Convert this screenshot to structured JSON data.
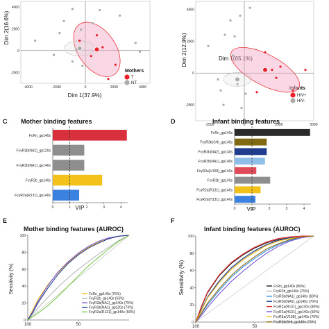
{
  "chart_data": [
    {
      "type": "scatter",
      "panel": "",
      "xlabel": "Dim 1(37.9%)",
      "ylabel": "Dim 2(16.6%)",
      "xticks": [
        "-4000",
        "-2000",
        "0",
        "2000",
        "4000"
      ],
      "yticks": [
        "4000",
        "2000",
        "0",
        "-2000",
        "-4000"
      ],
      "legend_title": "Mothers",
      "legend_position": "bottom-right",
      "series": [
        {
          "name": "T",
          "color": "#e8202a",
          "points": [
            [
              1200,
              300
            ],
            [
              400,
              -500
            ],
            [
              800,
              1400
            ],
            [
              -400,
              900
            ],
            [
              2100,
              -1300
            ],
            [
              1600,
              -2600
            ]
          ],
          "centroid": [
            800,
            100
          ]
        },
        {
          "name": "NT",
          "color": "#aaaaaa",
          "points": [
            [
              -3500,
              900
            ],
            [
              -1500,
              2700
            ],
            [
              -1800,
              1600
            ],
            [
              -900,
              3800
            ],
            [
              -600,
              100
            ],
            [
              -300,
              1900
            ],
            [
              500,
              2500
            ],
            [
              1000,
              3700
            ],
            [
              2400,
              3200
            ],
            [
              -2200,
              -400
            ],
            [
              -900,
              -1000
            ],
            [
              -200,
              -1400
            ],
            [
              3500,
              700
            ],
            [
              3800,
              -100
            ]
          ],
          "centroid": [
            -400,
            200
          ]
        }
      ]
    },
    {
      "type": "scatter",
      "panel": "",
      "xlabel": "Dim 1(65.1%)",
      "ylabel": "Dim 2(12.9%)",
      "xticks": [
        "-2500",
        "0",
        "2500",
        "5000"
      ],
      "yticks": [
        "4000",
        "2000",
        "0",
        "-2000"
      ],
      "legend_title": "Infants",
      "legend_position": "bottom-right",
      "series": [
        {
          "name": "HIV+",
          "color": "#e8202a",
          "points": [
            [
              1500,
              1300
            ],
            [
              2000,
              200
            ],
            [
              2600,
              400
            ],
            [
              3500,
              -1100
            ],
            [
              900,
              -1200
            ],
            [
              2300,
              -300
            ],
            [
              4400,
              200
            ]
          ],
          "centroid": [
            1500,
            200
          ]
        },
        {
          "name": "HIV-",
          "color": "#aaaaaa",
          "points": [
            [
              -2600,
              1700
            ],
            [
              -1700,
              -1100
            ],
            [
              -1400,
              2400
            ],
            [
              -1000,
              3300
            ],
            [
              -800,
              1100
            ],
            [
              -300,
              3600
            ],
            [
              400,
              4100
            ],
            [
              -500,
              -700
            ],
            [
              -1500,
              -2000
            ],
            [
              -200,
              -2200
            ],
            [
              -1900,
              -400
            ],
            [
              100,
              -1300
            ],
            [
              -700,
              2300
            ]
          ],
          "centroid": [
            -500,
            -400
          ]
        }
      ]
    },
    {
      "type": "bar",
      "panel": "C",
      "title": "Mother binding features",
      "xlabel": "VIP",
      "xticks": [
        "0",
        "1",
        "2",
        "3",
        "4"
      ],
      "xlim": [
        0,
        4.4
      ],
      "threshold": 1,
      "categories": [
        "FcRn_gp140s",
        "FcγR3b(NA1)_gp120s",
        "FcγR3b(NA1)_gp140s",
        "FcγR2b_gp140s",
        "FcγR2a(R131)_gp140s"
      ],
      "values": [
        4.35,
        1.85,
        1.85,
        2.9,
        1.55
      ],
      "colors": [
        "#d9303e",
        "#8e8e8e",
        "#8e8e8e",
        "#f2c21b",
        "#3b82e0"
      ]
    },
    {
      "type": "bar",
      "panel": "D",
      "title": "Infant binding features",
      "xlabel": "VIP",
      "xticks": [
        "0",
        "1",
        "2",
        "3",
        "4"
      ],
      "xlim": [
        0,
        4.4
      ],
      "threshold": 1,
      "categories": [
        "FcRn_gp140s",
        "FcγR3b(SH)_gp140s",
        "FcγR3b(NA2)_gp140s",
        "FcγR3b(NA1)_gp140s",
        "FcγR3a(V158)_gp140s",
        "FcγR2b_gp140s",
        "FcγR2a(R131)_gp140s",
        "FcγR2a(H131)_gp140s"
      ],
      "values": [
        4.35,
        1.85,
        1.85,
        1.75,
        1.25,
        2.05,
        1.5,
        1.2
      ],
      "colors": [
        "#2b2b2b",
        "#7f6a13",
        "#1f3c8f",
        "#8fbfe8",
        "#e04b5a",
        "#8e8e8e",
        "#f2c21b",
        "#3b82e0"
      ]
    },
    {
      "type": "line",
      "panel": "E",
      "title": "Mother binding features (AUROC)",
      "ylabel": "Sensitivity (%)",
      "yticks": [
        "100",
        "80",
        "60",
        "40",
        "20",
        "0"
      ],
      "xticks": [
        "100",
        "50"
      ],
      "series": [
        {
          "name": "FcRn_gp140s (75%)",
          "color": "#f2c21b",
          "x": [
            0,
            5,
            10,
            20,
            30,
            40,
            50,
            60,
            70,
            80,
            90,
            100
          ],
          "y": [
            0,
            12,
            24,
            42,
            56,
            68,
            78,
            86,
            92,
            96,
            99,
            100
          ]
        },
        {
          "name": "FcγR2b_gp140s (63%)",
          "color": "#b8b8b8",
          "x": [
            0,
            10,
            20,
            30,
            40,
            50,
            60,
            70,
            80,
            90,
            100
          ],
          "y": [
            0,
            14,
            27,
            39,
            50,
            60,
            69,
            78,
            86,
            94,
            100
          ]
        },
        {
          "name": "FcγR3b(NA1)_gp140s (75%)",
          "color": "#7a55d6",
          "x": [
            0,
            5,
            10,
            20,
            30,
            40,
            50,
            60,
            70,
            80,
            90,
            100
          ],
          "y": [
            0,
            10,
            22,
            41,
            57,
            69,
            79,
            87,
            93,
            97,
            99,
            100
          ]
        },
        {
          "name": "FcγR3b(NA1)_gp120s (73%)",
          "color": "#1f3c8f",
          "x": [
            0,
            5,
            10,
            20,
            30,
            40,
            50,
            60,
            70,
            80,
            90,
            100
          ],
          "y": [
            0,
            9,
            20,
            38,
            54,
            67,
            77,
            85,
            91,
            96,
            99,
            100
          ]
        },
        {
          "name": "FcγR2a(R131)_gp140s (60%)",
          "color": "#7ec850",
          "x": [
            0,
            10,
            20,
            30,
            40,
            50,
            60,
            70,
            80,
            90,
            100
          ],
          "y": [
            0,
            8,
            17,
            28,
            40,
            52,
            64,
            74,
            84,
            93,
            100
          ]
        }
      ]
    },
    {
      "type": "line",
      "panel": "F",
      "title": "Infant binding features (AUROC)",
      "ylabel": "Sensitivity (%)",
      "yticks": [
        "100",
        "80",
        "60",
        "40",
        "20",
        "0"
      ],
      "xticks": [
        "100",
        "50"
      ],
      "series": [
        {
          "name": "FcRn_gp140s (80%)",
          "color": "#222222",
          "x": [
            0,
            5,
            10,
            20,
            30,
            40,
            50,
            60,
            70,
            80,
            90,
            100
          ],
          "y": [
            0,
            18,
            34,
            54,
            68,
            78,
            86,
            92,
            96,
            98,
            99,
            100
          ]
        },
        {
          "name": "FcγR2b_gp140s (76%)",
          "color": "#b8b8b8",
          "x": [
            0,
            5,
            10,
            20,
            30,
            40,
            50,
            60,
            70,
            80,
            90,
            100
          ],
          "y": [
            0,
            14,
            28,
            47,
            62,
            73,
            82,
            89,
            94,
            97,
            99,
            100
          ]
        },
        {
          "name": "FcγR3b(NA1)_gp140s (69%)",
          "color": "#2e8de0",
          "x": [
            0,
            5,
            10,
            20,
            30,
            40,
            50,
            60,
            70,
            80,
            90,
            100
          ],
          "y": [
            0,
            10,
            20,
            37,
            52,
            64,
            74,
            83,
            90,
            95,
            99,
            100
          ]
        },
        {
          "name": "FcγR3b(NA2)_gp140s (76%)",
          "color": "#1f3c8f",
          "x": [
            0,
            5,
            10,
            20,
            30,
            40,
            50,
            60,
            70,
            80,
            90,
            100
          ],
          "y": [
            0,
            15,
            29,
            48,
            63,
            74,
            83,
            90,
            95,
            98,
            99,
            100
          ]
        },
        {
          "name": "FcγR2a(R131)_gp140s (80%)",
          "color": "#e8202a",
          "x": [
            0,
            5,
            10,
            20,
            30,
            40,
            50,
            60,
            70,
            80,
            90,
            100
          ],
          "y": [
            0,
            19,
            35,
            55,
            69,
            79,
            87,
            93,
            97,
            99,
            100,
            100
          ]
        },
        {
          "name": "FcγR2a(H131)_gp140s (66%)",
          "color": "#7a55d6",
          "x": [
            0,
            5,
            10,
            20,
            30,
            40,
            50,
            60,
            70,
            80,
            90,
            100
          ],
          "y": [
            0,
            8,
            17,
            33,
            47,
            59,
            70,
            80,
            88,
            94,
            98,
            100
          ]
        },
        {
          "name": "FcγR3a(V158)_gp140s (76%)",
          "color": "#f2c21b",
          "x": [
            0,
            5,
            10,
            20,
            30,
            40,
            50,
            60,
            70,
            80,
            90,
            100
          ],
          "y": [
            0,
            14,
            28,
            46,
            61,
            72,
            81,
            89,
            94,
            97,
            99,
            100
          ]
        },
        {
          "name": "FcγR3b(SH)_gp140s (71%)",
          "color": "#8b6a12",
          "x": [
            0,
            5,
            10,
            20,
            30,
            40,
            50,
            60,
            70,
            80,
            90,
            100
          ],
          "y": [
            0,
            11,
            22,
            39,
            54,
            66,
            76,
            85,
            91,
            96,
            99,
            100
          ]
        }
      ]
    }
  ]
}
